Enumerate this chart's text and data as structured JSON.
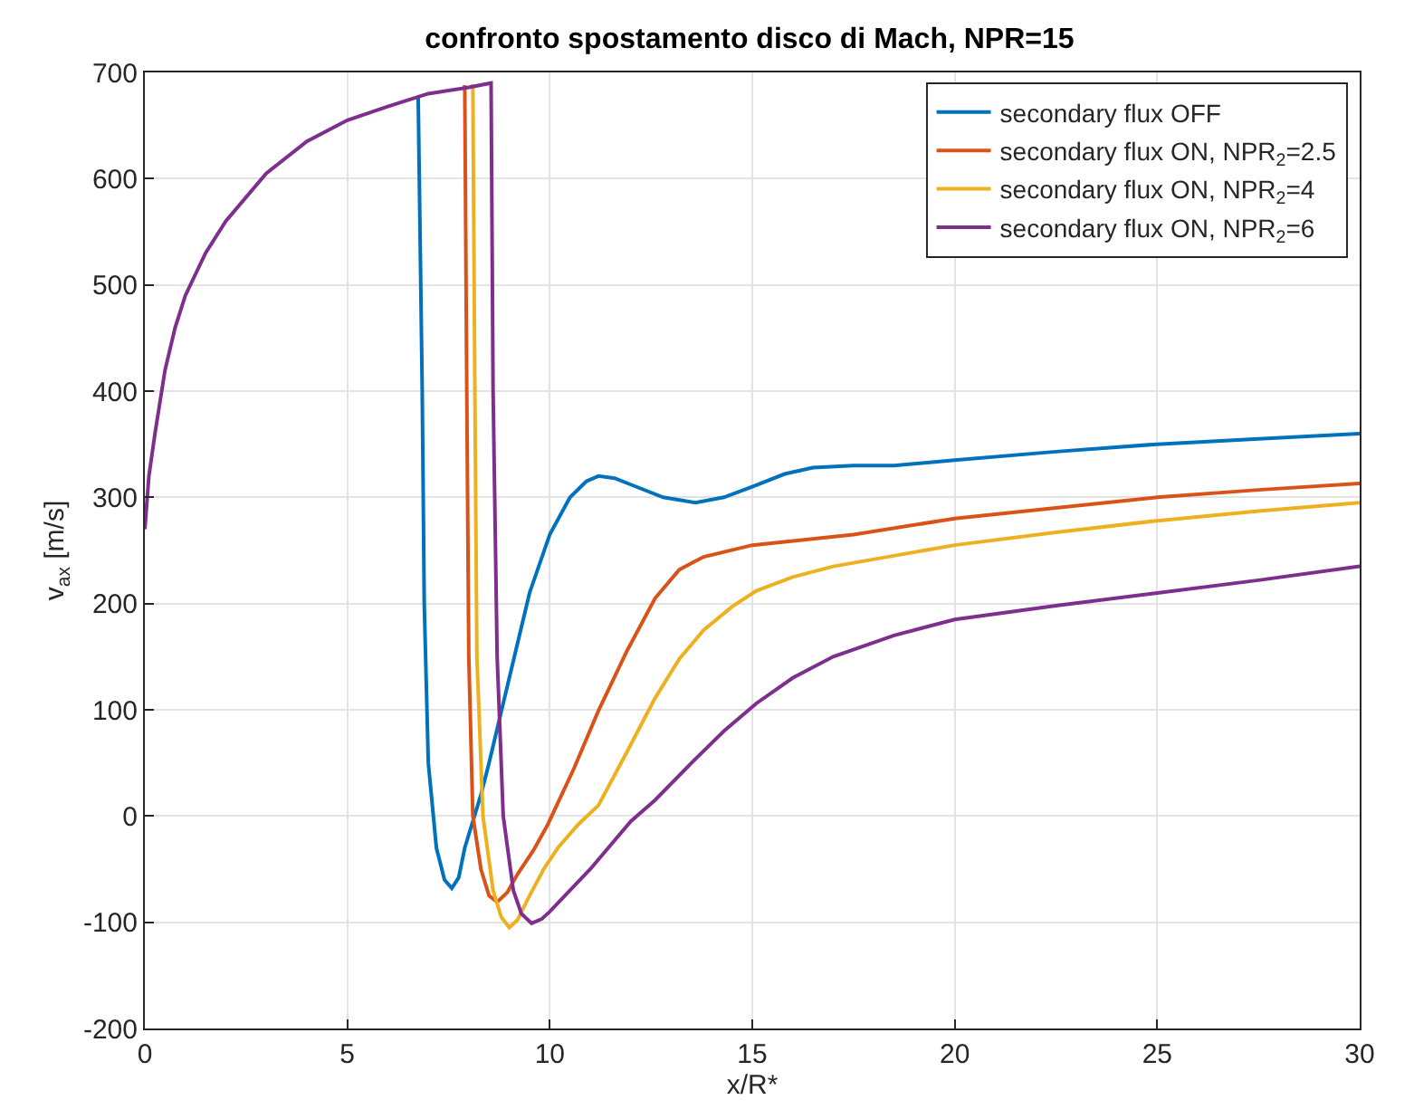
{
  "chart_data": {
    "type": "line",
    "title": "confronto spostamento disco di Mach, NPR=15",
    "xlabel": "x/R*",
    "ylabel": "v$_{ax}$ [m/s]",
    "xlim": [
      0,
      30
    ],
    "xticks": [
      0,
      5,
      10,
      15,
      20,
      25,
      30
    ],
    "ylim": [
      -200,
      700
    ],
    "yticks": [
      -200,
      -100,
      0,
      100,
      200,
      300,
      400,
      500,
      600,
      700
    ],
    "grid": true,
    "legend": "top right",
    "line_style": "solid",
    "marker": "none",
    "series": [
      {
        "name": "secondary flux OFF",
        "color": "#0072bd",
        "x": [
          6.75,
          6.85,
          6.9,
          7.0,
          7.2,
          7.4,
          7.58,
          7.75,
          7.9,
          8.3,
          8.5,
          9,
          9.5,
          10,
          10.5,
          10.9,
          11.2,
          11.6,
          12,
          12.8,
          13.6,
          14.3,
          15,
          15.8,
          16.5,
          17.5,
          18.5,
          20,
          22.5,
          25,
          27.5,
          30
        ],
        "values": [
          677,
          400,
          200,
          50,
          -30,
          -60,
          -68,
          -58,
          -30,
          20,
          50,
          130,
          210,
          265,
          300,
          315,
          320,
          318,
          312,
          300,
          295,
          300,
          310,
          322,
          328,
          330,
          330,
          335,
          343,
          350,
          355,
          360
        ]
      },
      {
        "name": "secondary flux ON, NPR$_{2}$=2.5",
        "color": "#d95319",
        "x": [
          7.9,
          7.95,
          8.0,
          8.1,
          8.3,
          8.5,
          8.7,
          8.95,
          9.2,
          9.6,
          9.95,
          10.6,
          11.2,
          11.9,
          12.6,
          13.2,
          13.8,
          15,
          17.5,
          20,
          22.5,
          25,
          27.5,
          30
        ],
        "values": [
          688,
          400,
          150,
          0,
          -50,
          -75,
          -81,
          -72,
          -55,
          -32,
          -8,
          45,
          99,
          155,
          205,
          232,
          244,
          255,
          265,
          280,
          290,
          300,
          307,
          313
        ]
      },
      {
        "name": "secondary flux ON, NPR$_{2}$=4",
        "color": "#edb120",
        "x": [
          8.1,
          8.15,
          8.2,
          8.35,
          8.6,
          8.8,
          9.0,
          9.2,
          9.5,
          9.85,
          10.2,
          10.7,
          11.2,
          11.9,
          12.6,
          13.2,
          13.8,
          14.5,
          15.1,
          16,
          17,
          18.5,
          20,
          22.5,
          25,
          27.5,
          30
        ],
        "values": [
          689,
          400,
          150,
          0,
          -70,
          -95,
          -105,
          -98,
          -75,
          -50,
          -30,
          -8,
          10,
          60,
          111,
          148,
          175,
          197,
          212,
          225,
          235,
          245,
          255,
          267,
          278,
          287,
          295
        ]
      },
      {
        "name": "secondary flux ON, NPR$_{2}$=6",
        "color": "#7e2f8e",
        "x": [
          0,
          0.1,
          0.25,
          0.5,
          0.75,
          1,
          1.5,
          2,
          3,
          4,
          5,
          6,
          7,
          8,
          8.55,
          8.6,
          8.7,
          8.85,
          9.1,
          9.3,
          9.55,
          9.8,
          10,
          11,
          12,
          12.6,
          13.5,
          14.3,
          15.1,
          16,
          17,
          18.5,
          20,
          22.5,
          25,
          27.5,
          30
        ],
        "values": [
          270,
          320,
          360,
          420,
          460,
          490,
          530,
          560,
          605,
          635,
          655,
          668,
          680,
          686,
          690,
          400,
          150,
          0,
          -70,
          -92,
          -101,
          -97,
          -90,
          -50,
          -5,
          15,
          50,
          80,
          106,
          130,
          150,
          170,
          185,
          198,
          210,
          222,
          235
        ]
      }
    ]
  }
}
